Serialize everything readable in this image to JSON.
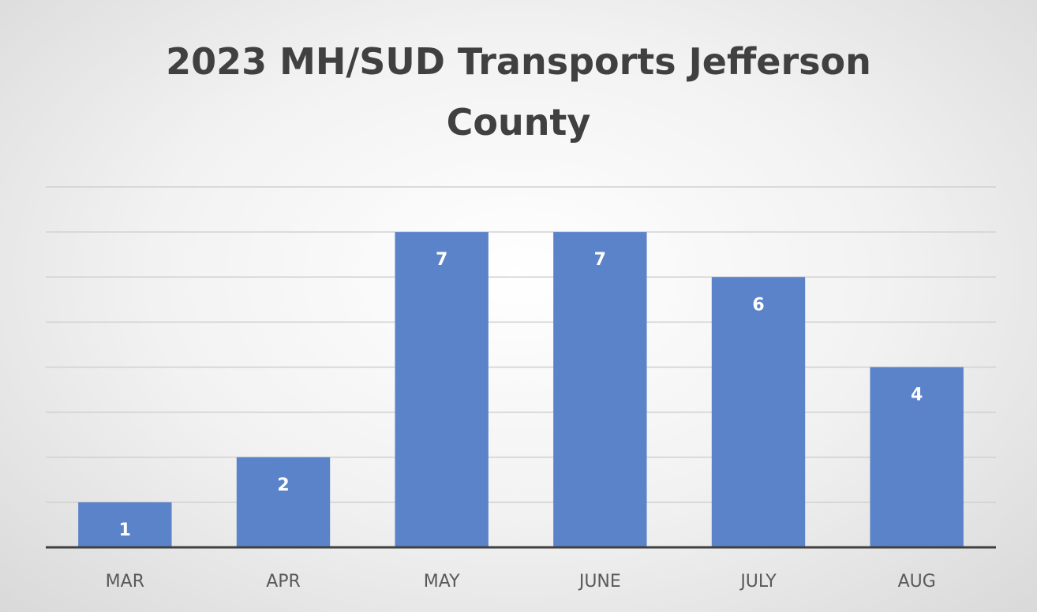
{
  "chart_data": {
    "type": "bar",
    "title": "2023 MH/SUD Transports Jefferson County",
    "categories": [
      "MAR",
      "APR",
      "MAY",
      "JUNE",
      "JULY",
      "AUG"
    ],
    "values": [
      1,
      2,
      7,
      7,
      6,
      4
    ],
    "color": "#5b83c9",
    "ylim": [
      0,
      8
    ],
    "yticks": [
      0,
      1,
      2,
      3,
      4,
      5,
      6,
      7,
      8
    ],
    "grid": true
  }
}
